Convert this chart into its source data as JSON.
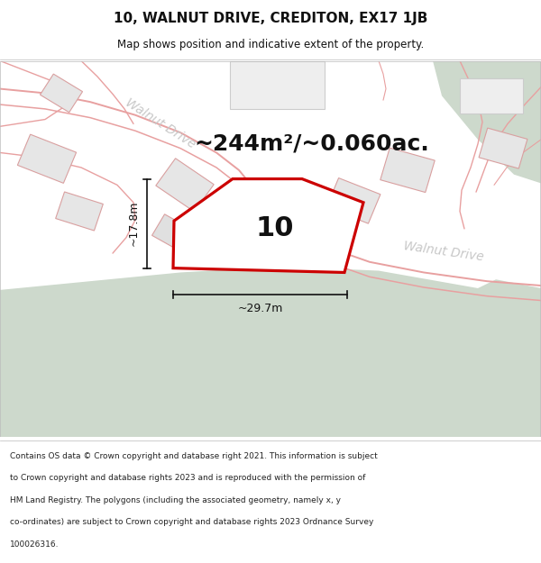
{
  "title": "10, WALNUT DRIVE, CREDITON, EX17 1JB",
  "subtitle": "Map shows position and indicative extent of the property.",
  "area_text": "~244m²/~0.060ac.",
  "street_label1": "Walnut Drive",
  "street_label2": "Walnut Drive",
  "property_number": "10",
  "dim_width": "~29.7m",
  "dim_height": "~17.8m",
  "copyright_lines": [
    "Contains OS data © Crown copyright and database right 2021. This information is subject",
    "to Crown copyright and database rights 2023 and is reproduced with the permission of",
    "HM Land Registry. The polygons (including the associated geometry, namely x, y",
    "co-ordinates) are subject to Crown copyright and database rights 2023 Ordnance Survey",
    "100026316."
  ],
  "bg_color": "#ffffff",
  "map_bg": "#f2f2f2",
  "green_color": "#cdd9cc",
  "property_fill": "#ffffff",
  "property_edge": "#cc0000",
  "building_fill": "#e6e6e6",
  "building_edge": "#d9a0a0",
  "road_line_color": "#e8a0a0",
  "dim_color": "#111111",
  "text_color": "#111111",
  "street_label_color": "#c8c8c8",
  "title_fontsize": 11,
  "subtitle_fontsize": 8.5,
  "area_fontsize": 18,
  "number_fontsize": 22,
  "street_fontsize": 10,
  "dim_fontsize": 9,
  "copy_fontsize": 6.5
}
